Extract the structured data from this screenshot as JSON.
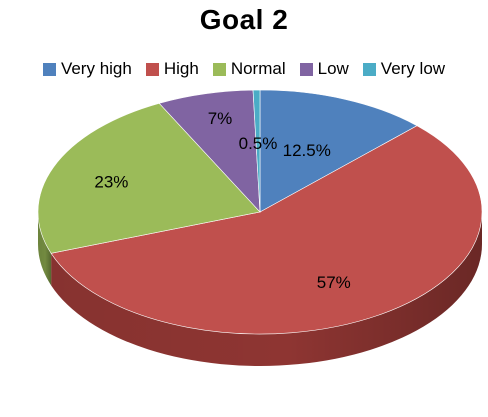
{
  "chart_data": {
    "type": "pie",
    "title": "Goal 2",
    "legend_position": "top",
    "three_d": true,
    "slices": [
      {
        "name": "Very high",
        "value": 12.5,
        "label": "12.5%",
        "color": "#4f81bd",
        "dark": "#3a6190"
      },
      {
        "name": "High",
        "value": 57,
        "label": "57%",
        "color": "#c0504d",
        "dark": "#8e3532"
      },
      {
        "name": "Normal",
        "value": 23,
        "label": "23%",
        "color": "#9bbb59",
        "dark": "#728a40"
      },
      {
        "name": "Low",
        "value": 7,
        "label": "7%",
        "color": "#8064a2",
        "dark": "#5e4a78"
      },
      {
        "name": "Very low",
        "value": 0.5,
        "label": "0.5%",
        "color": "#4bacc6",
        "dark": "#357f93"
      }
    ]
  }
}
